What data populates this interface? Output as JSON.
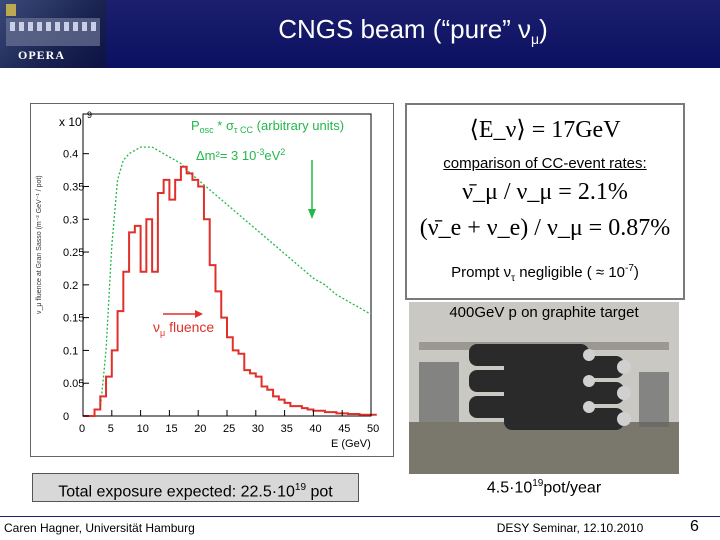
{
  "header": {
    "logo_text": "OPERA",
    "title_main": "CNGS beam (“pure” ν",
    "title_sub": "μ",
    "title_end": ")"
  },
  "plot": {
    "scale_label": "x 10",
    "scale_exp": "9",
    "ylabel": "ν_μ fluence at Gran Sasso (m⁻² GeV⁻¹ / pot)",
    "xlabel": "E (GeV)",
    "y_ticks": [
      "0.4",
      "0.35",
      "0.3",
      "0.25",
      "0.2",
      "0.15",
      "0.1",
      "0.05",
      "0"
    ],
    "x_ticks": [
      "0",
      "5",
      "10",
      "15",
      "20",
      "25",
      "30",
      "35",
      "40",
      "45",
      "50"
    ],
    "legend_green_line1_a": "P",
    "legend_green_line1_b": "osc",
    "legend_green_line1_c": " * σ",
    "legend_green_line1_d": "τ CC",
    "legend_green_line1_e": " (arbitrary units)",
    "legend_green_line2_a": "Δm²= 3 10",
    "legend_green_line2_b": "-3",
    "legend_green_line2_c": "eV",
    "legend_green_line2_d": "2",
    "legend_red_a": "ν",
    "legend_red_b": "μ",
    "legend_red_c": " fluence",
    "colors": {
      "green": "#22b84a",
      "red": "#e0302a"
    }
  },
  "info": {
    "energy_eq": "⟨E_ν⟩ = 17GeV",
    "comparison": "comparison of CC-event rates:",
    "eq1": "ν̄_μ / ν_μ = 2.1%",
    "eq2": "(ν̄_e + ν_e) / ν_μ = 0.87%",
    "prompt_a": "Prompt ν",
    "prompt_b": "τ",
    "prompt_c": " negligible ( ≈ 10",
    "prompt_d": "-7",
    "prompt_e": ")"
  },
  "photo": {
    "caption": "400GeV p on graphite target"
  },
  "exposure": {
    "label_a": "Total  exposure expected: 22.5·10",
    "label_b": "19",
    "label_c": " pot"
  },
  "rate": {
    "label_a": "4.5·10",
    "label_b": "19",
    "label_c": "pot/year"
  },
  "footer": {
    "left": "Caren Hagner, Universität Hamburg",
    "mid": "DESY Seminar, 12.10.2010",
    "page": "6"
  },
  "chart_data": [
    {
      "type": "line",
      "title": "",
      "xlabel": "E (GeV)",
      "ylabel": "ν_μ fluence at Gran Sasso (m⁻² GeV⁻¹ / pot)",
      "xlim": [
        0,
        50
      ],
      "ylim": [
        0,
        0.43
      ],
      "series": [
        {
          "name": "ν_μ fluence",
          "color": "#e0302a",
          "style": "step",
          "x": [
            0,
            2,
            3,
            4,
            5,
            6,
            7,
            8,
            9,
            10,
            11,
            12,
            13,
            14,
            15,
            16,
            17,
            18,
            19,
            20,
            21,
            22,
            23,
            24,
            25,
            26,
            27,
            28,
            29,
            30,
            31,
            32,
            33,
            34,
            35,
            36,
            37,
            38,
            39,
            40,
            41,
            42,
            43,
            44,
            45,
            46,
            47,
            48,
            49,
            50
          ],
          "values": [
            0,
            0.01,
            0.03,
            0.06,
            0.1,
            0.16,
            0.22,
            0.28,
            0.29,
            0.22,
            0.3,
            0.22,
            0.34,
            0.36,
            0.33,
            0.36,
            0.38,
            0.37,
            0.36,
            0.35,
            0.3,
            0.23,
            0.19,
            0.15,
            0.12,
            0.1,
            0.095,
            0.07,
            0.065,
            0.06,
            0.045,
            0.04,
            0.03,
            0.025,
            0.02,
            0.015,
            0.015,
            0.012,
            0.01,
            0.008,
            0.008,
            0.006,
            0.006,
            0.004,
            0.004,
            0.003,
            0.003,
            0.002,
            0.002,
            0.002
          ]
        },
        {
          "name": "P_osc * σ_τCC (arbitrary units)",
          "color": "#22b84a",
          "style": "dotted",
          "x": [
            3,
            4,
            5,
            6,
            7,
            8,
            9,
            10,
            11,
            12,
            13,
            14,
            15,
            16,
            17,
            18,
            20,
            22,
            24,
            26,
            28,
            30,
            32,
            34,
            36,
            38,
            40,
            42,
            44,
            46,
            48,
            50
          ],
          "values": [
            0.01,
            0.1,
            0.26,
            0.36,
            0.39,
            0.4,
            0.405,
            0.41,
            0.41,
            0.41,
            0.405,
            0.4,
            0.395,
            0.39,
            0.385,
            0.375,
            0.36,
            0.345,
            0.33,
            0.315,
            0.3,
            0.285,
            0.27,
            0.255,
            0.24,
            0.225,
            0.21,
            0.2,
            0.185,
            0.175,
            0.165,
            0.155
          ]
        }
      ]
    }
  ]
}
